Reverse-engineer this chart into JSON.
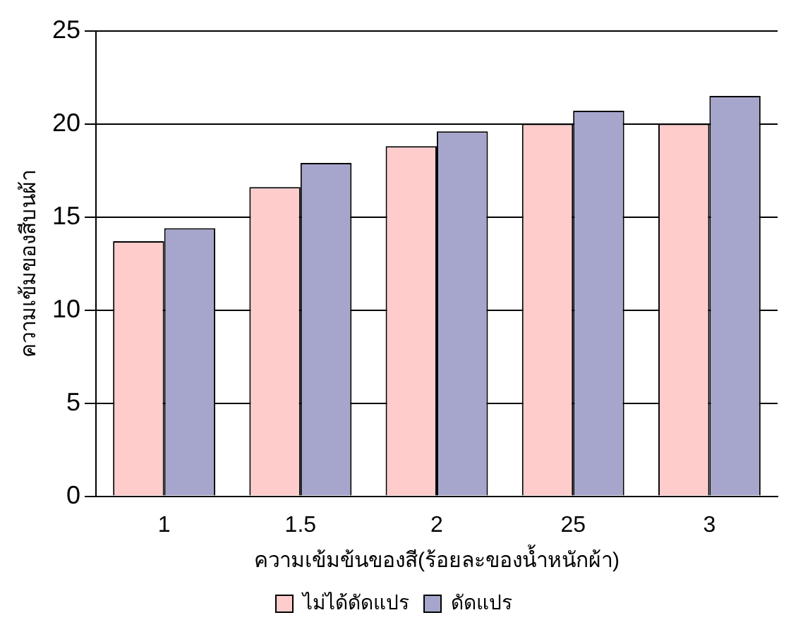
{
  "chart_data": {
    "type": "bar",
    "xlabel": "ความเข้มข้นของสี(ร้อยละของน้ำหนักผ้า)",
    "ylabel": "ความเข้มของสีบนผ้า",
    "categories": [
      "1",
      "1.5",
      "2",
      "25",
      "3"
    ],
    "series": [
      {
        "name": "ไม่ได้ดัดแปร",
        "color": "#ffcccc",
        "values": [
          13.7,
          16.6,
          18.8,
          20.0,
          20.0
        ]
      },
      {
        "name": "ดัดแปร",
        "color": "#a6a6cc",
        "values": [
          14.4,
          17.9,
          19.6,
          20.7,
          21.5
        ]
      }
    ],
    "ylim": [
      0,
      25
    ],
    "yticks": [
      0,
      5,
      10,
      15,
      20,
      25
    ],
    "grid": "y",
    "legend": "bottom"
  }
}
